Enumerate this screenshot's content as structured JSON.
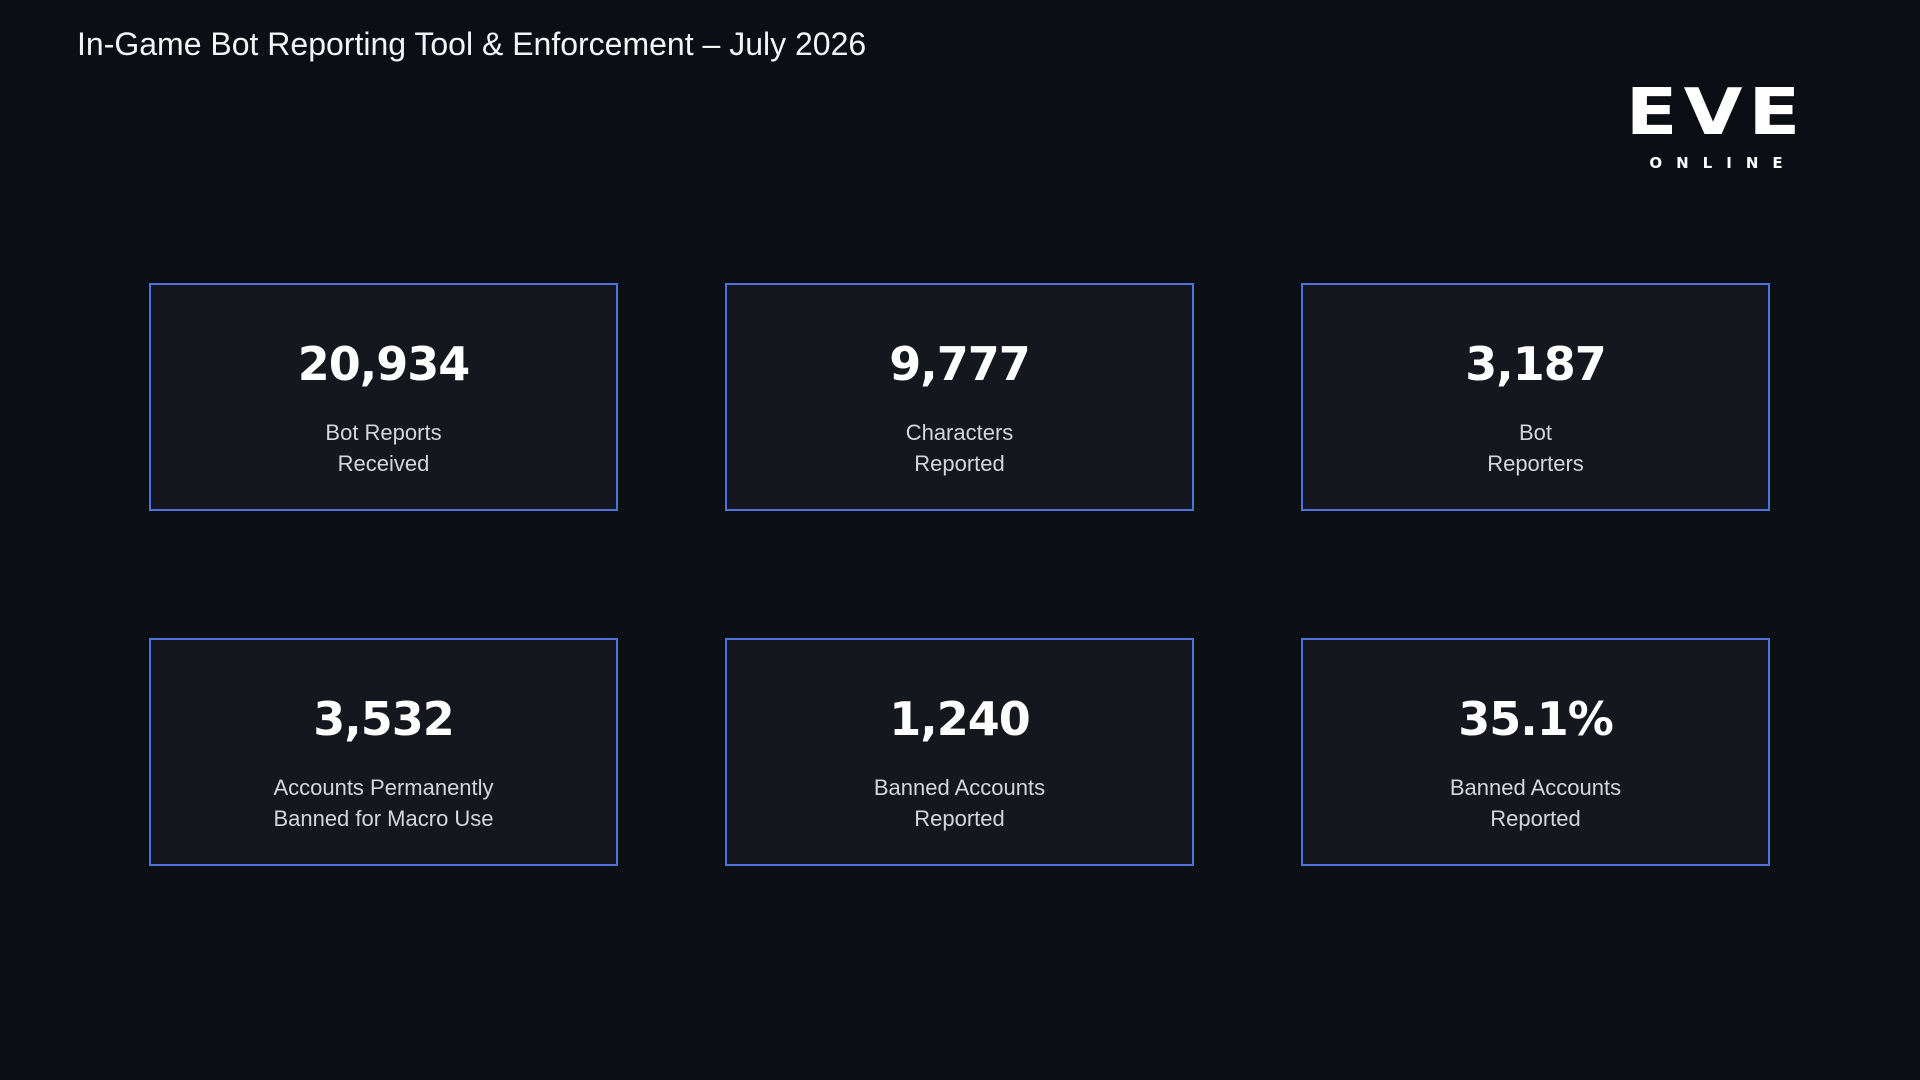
{
  "header": {
    "title": "In-Game Bot Reporting Tool & Enforcement – July 2026"
  },
  "logo": {
    "wordmark": "EVE",
    "tagline": "ONLINE"
  },
  "cards": [
    {
      "value": "20,934",
      "label": [
        "Bot Reports",
        "Received"
      ]
    },
    {
      "value": "9,777",
      "label": [
        "Characters",
        "Reported"
      ]
    },
    {
      "value": "3,187",
      "label": [
        "Bot",
        "Reporters"
      ]
    },
    {
      "value": "3,532",
      "label": [
        "Accounts Permanently",
        "Banned for Macro Use"
      ]
    },
    {
      "value": "1,240",
      "label": [
        "Banned Accounts",
        "Reported"
      ]
    },
    {
      "value": "35.1%",
      "label": [
        "Banned Accounts",
        "Reported"
      ]
    }
  ]
}
